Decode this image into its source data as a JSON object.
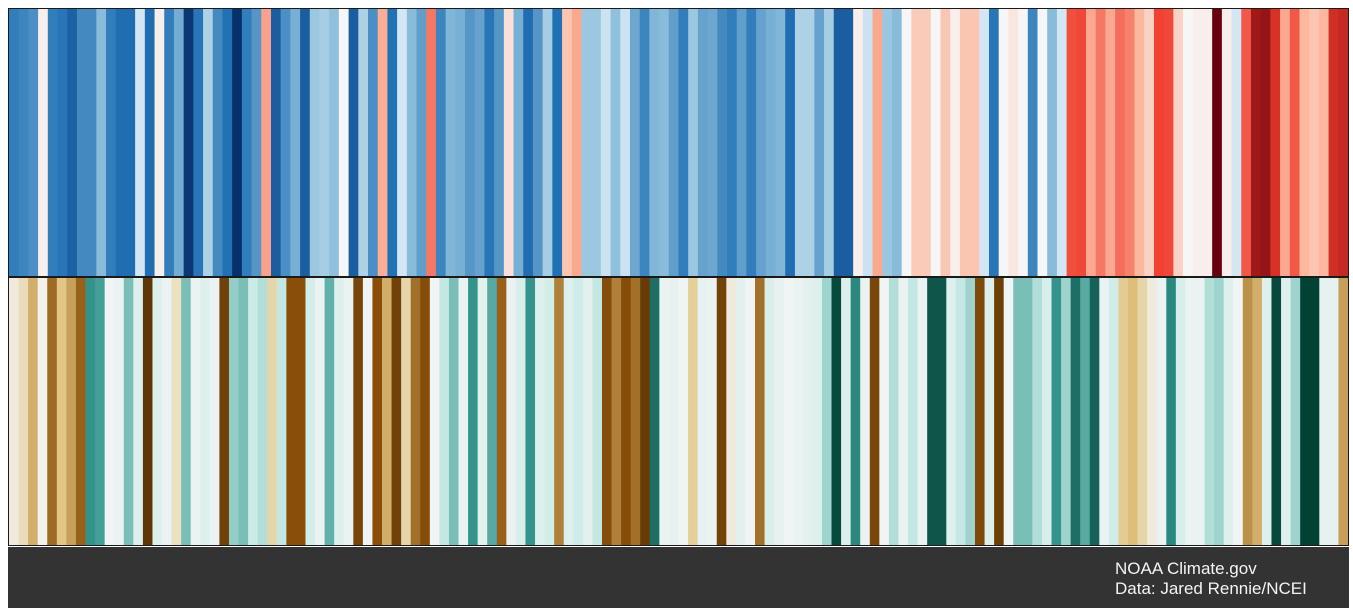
{
  "footer": {
    "source": "NOAA Climate.gov",
    "data_credit": "Data: Jared Rennie/NCEI"
  },
  "chart_data": [
    {
      "type": "heatmap",
      "palette": "blue-red",
      "colors": {
        "bluest": "#08306b",
        "blue": "#2171b5",
        "light_blue": "#9ecae1",
        "pale": "#f7fbff",
        "salmon": "#fcbba1",
        "red": "#ef3b2c",
        "darkest_red": "#67000d"
      },
      "values": [
        -0.55,
        -0.52,
        -0.48,
        0.05,
        -0.55,
        -0.58,
        -0.7,
        -0.5,
        -0.5,
        -0.3,
        -0.55,
        -0.62,
        -0.62,
        -0.1,
        -0.62,
        0.05,
        -0.55,
        -0.36,
        -0.95,
        -0.58,
        -0.2,
        -0.5,
        -0.6,
        -1.0,
        -0.55,
        -0.45,
        0.32,
        -0.72,
        -0.48,
        -0.35,
        -0.72,
        -0.25,
        -0.22,
        -0.28,
        0.02,
        -0.72,
        -0.2,
        -0.48,
        0.28,
        -0.6,
        -0.1,
        -0.3,
        -0.42,
        0.45,
        -0.52,
        -0.32,
        -0.35,
        -0.45,
        -0.4,
        -0.58,
        -0.45,
        0.1,
        -0.35,
        -0.62,
        -0.45,
        -0.22,
        -0.6,
        0.2,
        0.3,
        -0.25,
        -0.25,
        -0.12,
        -0.28,
        -0.12,
        -0.38,
        -0.52,
        -0.32,
        -0.3,
        -0.42,
        -0.55,
        -0.25,
        -0.4,
        -0.38,
        -0.5,
        -0.55,
        -0.42,
        -0.55,
        -0.4,
        -0.35,
        -0.32,
        -0.62,
        -0.2,
        -0.2,
        -0.4,
        -0.22,
        -0.72,
        -0.72,
        0.05,
        -0.12,
        0.3,
        -0.25,
        -0.3,
        0.02,
        0.18,
        0.18,
        0.02,
        0.2,
        0.05,
        0.2,
        0.2,
        -0.1,
        -0.58,
        0.02,
        0.08,
        0.02,
        -0.52,
        0.02,
        -0.3,
        -0.1,
        0.58,
        0.6,
        0.3,
        0.45,
        0.3,
        0.48,
        0.42,
        0.25,
        0.15,
        0.62,
        0.6,
        0.15,
        0.02,
        0.05,
        0.05,
        1.0,
        0.05,
        -0.1,
        0.55,
        0.85,
        0.88,
        0.7,
        0.3,
        0.55,
        0.25,
        0.2,
        0.25,
        0.72,
        0.75
      ]
    },
    {
      "type": "heatmap",
      "palette": "brown-teal",
      "colors": {
        "darkest_brown": "#543005",
        "brown": "#8c510a",
        "tan": "#dfc27d",
        "cream": "#f5f5f5",
        "light_teal": "#c7eae5",
        "teal": "#35978f",
        "darkest_teal": "#003c30"
      },
      "values": [
        -0.05,
        -0.12,
        -0.3,
        -0.02,
        -0.52,
        -0.22,
        -0.35,
        -0.55,
        0.65,
        0.6,
        0.02,
        0.05,
        0.45,
        0.12,
        -0.92,
        0.12,
        0.05,
        -0.1,
        0.45,
        0.05,
        0.12,
        0.05,
        -0.8,
        0.38,
        0.45,
        0.22,
        0.3,
        -0.15,
        0.25,
        -0.62,
        -0.62,
        0.18,
        0.05,
        0.52,
        0.12,
        0.05,
        -0.75,
        0.02,
        -0.62,
        -0.3,
        -0.8,
        -0.15,
        -0.5,
        -0.65,
        0.02,
        0.25,
        0.45,
        0.05,
        0.65,
        0.1,
        0.55,
        -0.55,
        0.05,
        0.15,
        0.65,
        0.12,
        0.18,
        -0.45,
        0.12,
        0.2,
        0.1,
        0.25,
        -0.65,
        -0.45,
        -0.65,
        -0.5,
        -0.85,
        0.8,
        0.05,
        0.08,
        0.02,
        -0.18,
        0.08,
        0.05,
        -0.78,
        -0.05,
        0.1,
        0.02,
        -0.5,
        0.15,
        0.08,
        0.02,
        0.05,
        0.1,
        0.12,
        0.35,
        0.95,
        0.12,
        0.7,
        0.05,
        -0.72,
        0.02,
        0.3,
        0.05,
        0.25,
        0.05,
        0.9,
        0.9,
        0.12,
        0.25,
        0.35,
        -0.7,
        0.12,
        -0.82,
        0.02,
        0.45,
        0.45,
        0.3,
        0.15,
        0.65,
        0.35,
        0.8,
        0.55,
        0.85,
        0.05,
        0.2,
        -0.2,
        -0.25,
        -0.15,
        -0.05,
        0.05,
        0.7,
        0.15,
        0.05,
        0.05,
        0.3,
        0.35,
        0.12,
        0.02,
        -0.4,
        -0.3,
        0.12,
        0.95,
        0.12,
        0.35,
        0.98,
        0.98,
        0.08,
        0.08,
        -0.35
      ]
    }
  ]
}
